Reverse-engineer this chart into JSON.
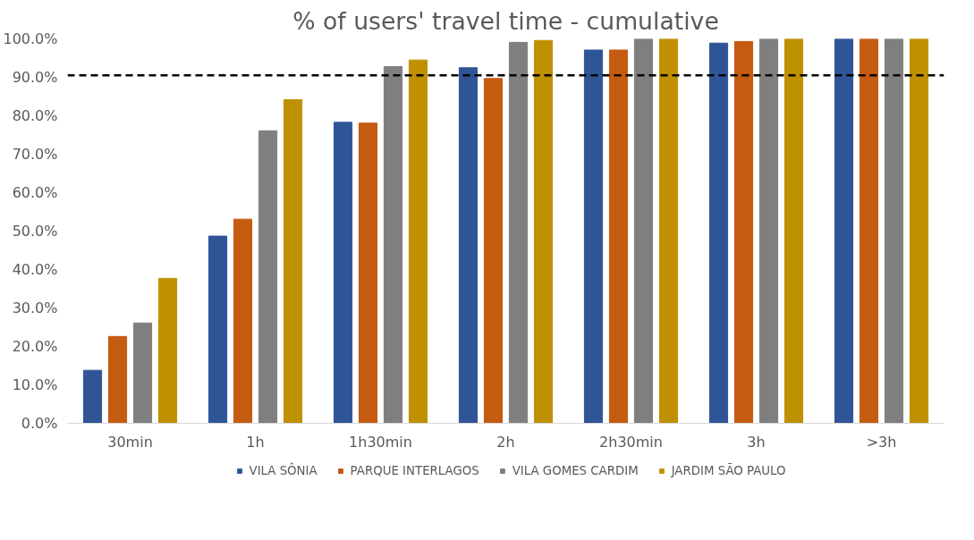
{
  "chart_data": {
    "type": "bar",
    "title": "% of users' travel time - cumulative",
    "categories": [
      "30min",
      "1h",
      "1h30min",
      "2h",
      "2h30min",
      "3h",
      ">3h"
    ],
    "series": [
      {
        "name": "VILA SÔNIA",
        "color": "#2f5597",
        "values": [
          13.8,
          48.7,
          78.3,
          92.5,
          97.1,
          98.9,
          100
        ]
      },
      {
        "name": "PARQUE INTERLAGOS",
        "color": "#c55a11",
        "values": [
          22.6,
          53.1,
          78.1,
          89.7,
          97.1,
          99.3,
          100
        ]
      },
      {
        "name": "VILA GOMES CARDIM",
        "color": "#7f7f7f",
        "values": [
          26.1,
          76.1,
          92.8,
          99.1,
          100,
          100,
          100
        ]
      },
      {
        "name": "JARDIM SÃO PAULO",
        "color": "#bf9000",
        "values": [
          37.7,
          84.2,
          94.5,
          99.6,
          100,
          100,
          100
        ]
      }
    ],
    "ylim": [
      0,
      100
    ],
    "yticks": [
      {
        "value": 0,
        "label": "0.0%"
      },
      {
        "value": 10,
        "label": "10.0%"
      },
      {
        "value": 20,
        "label": "20.0%"
      },
      {
        "value": 30,
        "label": "30.0%"
      },
      {
        "value": 40,
        "label": "40.0%"
      },
      {
        "value": 50,
        "label": "50.0%"
      },
      {
        "value": 60,
        "label": "60.0%"
      },
      {
        "value": 70,
        "label": "70.0%"
      },
      {
        "value": 80,
        "label": "80.0%"
      },
      {
        "value": 90,
        "label": "90.0%"
      },
      {
        "value": 100,
        "label": "100.0%"
      }
    ],
    "ref_lines": [
      {
        "axis": "y",
        "value": 90.5,
        "color": "#000000",
        "line_style": "dashed"
      }
    ],
    "grid": false,
    "legend": "bottom"
  }
}
